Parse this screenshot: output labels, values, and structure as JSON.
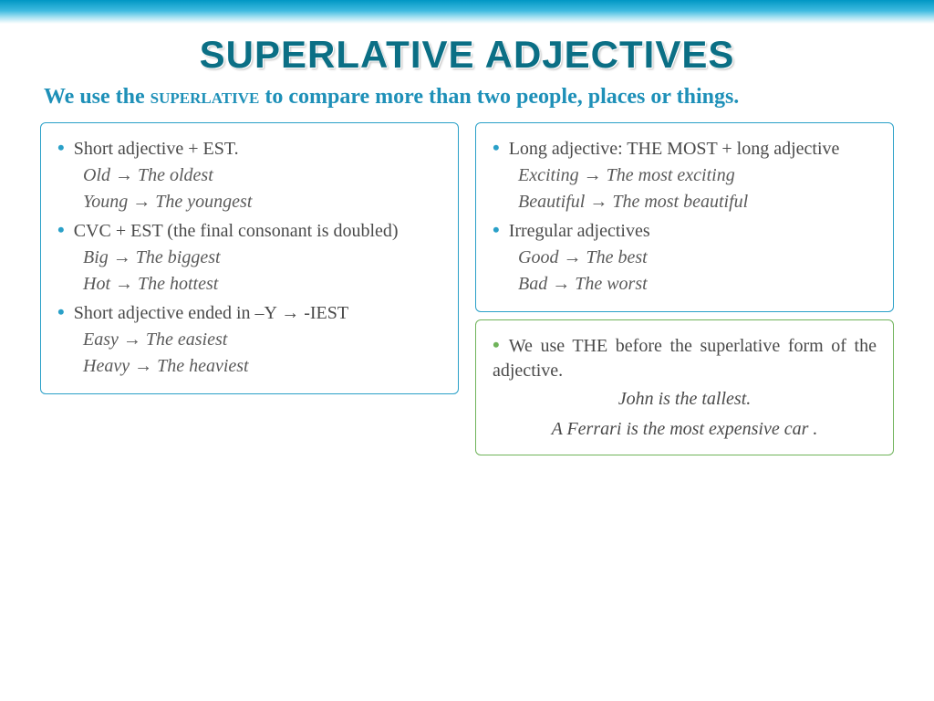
{
  "title": "SUPERLATIVE ADJECTIVES",
  "subtitle_prefix": "We use the ",
  "subtitle_sup": "superlative",
  "subtitle_rest": " to compare more than two people, places or things.",
  "left": {
    "rule1": "Short adjective + EST.",
    "ex1a": "Old → The oldest",
    "ex1b": "Young → The youngest",
    "rule2": "CVC + EST (the final consonant is doubled)",
    "ex2a": "Big → The biggest",
    "ex2b": "Hot → The hottest",
    "rule3": "Short adjective ended in –Y → -IEST",
    "ex3a": "Easy → The easiest",
    "ex3b": "Heavy → The heaviest"
  },
  "right_top": {
    "rule1": "Long adjective: THE MOST + long adjective",
    "ex1a": "Exciting → The most exciting",
    "ex1b": "Beautiful → The most beautiful",
    "rule2": "Irregular adjectives",
    "ex2a": "Good → The best",
    "ex2b": "Bad → The worst"
  },
  "right_bottom": {
    "note": "We use THE before the superlative form of the adjective.",
    "ex1": "John is the tallest.",
    "ex2": "A Ferrari is the most expensive car ."
  },
  "styles": {
    "title_color": "#0b6f85",
    "subtitle_color": "#1e90b8",
    "blue": "#2aa0c8",
    "green": "#6fb35a",
    "text_color": "#4a4a4a",
    "title_fontsize": 42,
    "subtitle_fontsize": 24,
    "body_fontsize": 20,
    "gradient_top": "#0097c4",
    "gradient_bottom": "#ffffff"
  }
}
